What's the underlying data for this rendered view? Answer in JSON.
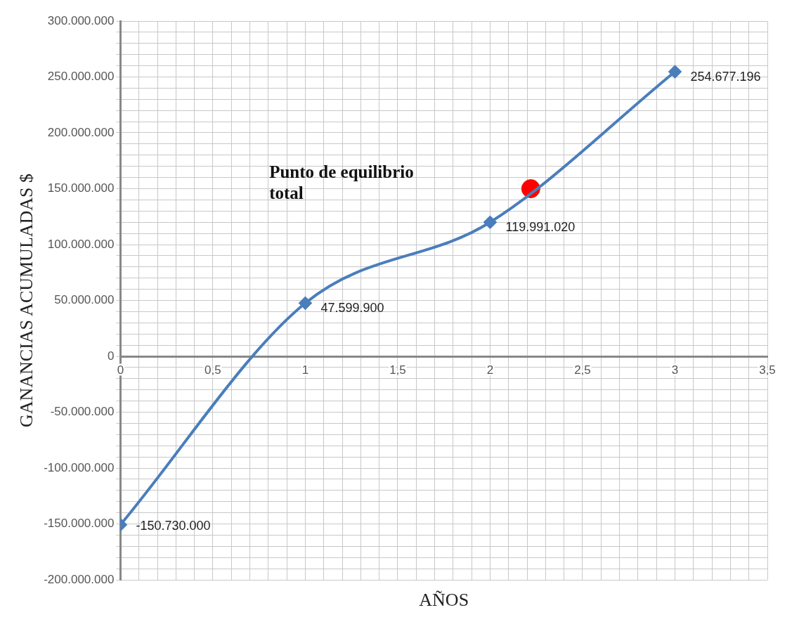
{
  "chart_data": {
    "type": "line",
    "xlabel": "AÑOS",
    "ylabel": "GANANCIAS ACUMULADAS $",
    "x": [
      0,
      1,
      2,
      3
    ],
    "series": [
      {
        "color": "#4a7ebb",
        "marker": "diamond",
        "values": [
          -150730000,
          47599900,
          119991020,
          254677196
        ],
        "value_labels": [
          "-150.730.000",
          "47.599.900",
          "119.991.020",
          "254.677.196"
        ]
      },
      {
        "type": "scatter",
        "color": "#ff0000",
        "marker": "circle",
        "x": [
          2.22
        ],
        "values": [
          150000000
        ]
      }
    ],
    "annotations": [
      "Punto de equilibrio total"
    ],
    "xlim": [
      0,
      3.5
    ],
    "ylim": [
      -200000000,
      300000000
    ],
    "xticks": [
      0,
      {
        "value": 0.1,
        "label": null
      },
      {
        "value": 0.2,
        "label": null
      },
      {
        "value": 0.3,
        "label": null
      },
      {
        "value": 0.4,
        "label": null
      },
      {
        "value": 0.5,
        "label": "0,5"
      },
      {
        "value": 0.6,
        "label": null
      },
      {
        "value": 0.7,
        "label": null
      },
      {
        "value": 0.8,
        "label": null
      },
      {
        "value": 0.9,
        "label": null
      },
      1,
      {
        "value": 1.1,
        "label": null
      },
      {
        "value": 1.2,
        "label": null
      },
      {
        "value": 1.3,
        "label": null
      },
      {
        "value": 1.4,
        "label": null
      },
      {
        "value": 1.5,
        "label": "1,5"
      },
      {
        "value": 1.6,
        "label": null
      },
      {
        "value": 1.7,
        "label": null
      },
      {
        "value": 1.8,
        "label": null
      },
      {
        "value": 1.9,
        "label": null
      },
      2,
      {
        "value": 2.1,
        "label": null
      },
      {
        "value": 2.2,
        "label": null
      },
      {
        "value": 2.3,
        "label": null
      },
      {
        "value": 2.4,
        "label": null
      },
      {
        "value": 2.5,
        "label": "2,5"
      },
      {
        "value": 2.6,
        "label": null
      },
      {
        "value": 2.7,
        "label": null
      },
      {
        "value": 2.8,
        "label": null
      },
      {
        "value": 2.9,
        "label": null
      },
      3,
      {
        "value": 3.1,
        "label": null
      },
      {
        "value": 3.2,
        "label": null
      },
      {
        "value": 3.3,
        "label": null
      },
      {
        "value": 3.4,
        "label": null
      },
      {
        "value": 3.5,
        "label": "3,5"
      }
    ],
    "yticks": [
      {
        "value": -200000000,
        "label": "-200.000.000"
      },
      {
        "value": -190000000,
        "label": null
      },
      {
        "value": -180000000,
        "label": null
      },
      {
        "value": -170000000,
        "label": null
      },
      {
        "value": -160000000,
        "label": null
      },
      {
        "value": -150000000,
        "label": "-150.000.000"
      },
      {
        "value": -140000000,
        "label": null
      },
      {
        "value": -130000000,
        "label": null
      },
      {
        "value": -120000000,
        "label": null
      },
      {
        "value": -110000000,
        "label": null
      },
      {
        "value": -100000000,
        "label": "-100.000.000"
      },
      {
        "value": -90000000,
        "label": null
      },
      {
        "value": -80000000,
        "label": null
      },
      {
        "value": -70000000,
        "label": null
      },
      {
        "value": -60000000,
        "label": null
      },
      {
        "value": -50000000,
        "label": "-50.000.000"
      },
      {
        "value": -40000000,
        "label": null
      },
      {
        "value": -30000000,
        "label": null
      },
      {
        "value": -20000000,
        "label": null
      },
      {
        "value": -10000000,
        "label": null
      },
      0,
      {
        "value": 10000000,
        "label": null
      },
      {
        "value": 20000000,
        "label": null
      },
      {
        "value": 30000000,
        "label": null
      },
      {
        "value": 40000000,
        "label": null
      },
      {
        "value": 50000000,
        "label": "50.000.000"
      },
      {
        "value": 60000000,
        "label": null
      },
      {
        "value": 70000000,
        "label": null
      },
      {
        "value": 80000000,
        "label": null
      },
      {
        "value": 90000000,
        "label": null
      },
      {
        "value": 100000000,
        "label": "100.000.000"
      },
      {
        "value": 110000000,
        "label": null
      },
      {
        "value": 120000000,
        "label": null
      },
      {
        "value": 130000000,
        "label": null
      },
      {
        "value": 140000000,
        "label": null
      },
      {
        "value": 150000000,
        "label": "150.000.000"
      },
      {
        "value": 160000000,
        "label": null
      },
      {
        "value": 170000000,
        "label": null
      },
      {
        "value": 180000000,
        "label": null
      },
      {
        "value": 190000000,
        "label": null
      },
      {
        "value": 200000000,
        "label": "200.000.000"
      },
      {
        "value": 210000000,
        "label": null
      },
      {
        "value": 220000000,
        "label": null
      },
      {
        "value": 230000000,
        "label": null
      },
      {
        "value": 240000000,
        "label": null
      },
      {
        "value": 250000000,
        "label": "250.000.000"
      },
      {
        "value": 260000000,
        "label": null
      },
      {
        "value": 270000000,
        "label": null
      },
      {
        "value": 280000000,
        "label": null
      },
      {
        "value": 290000000,
        "label": null
      },
      {
        "value": 300000000,
        "label": "300.000.000"
      }
    ],
    "grid": true,
    "legend": false
  }
}
